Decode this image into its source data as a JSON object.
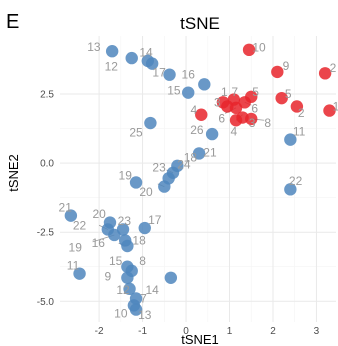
{
  "panel_label": "E",
  "colors": {
    "cluster_blue": "#4f86bd",
    "cluster_red": "#e8242c",
    "label": "#9a9a9a"
  },
  "chart_data": {
    "type": "scatter",
    "title": "tSNE",
    "xlabel": "tSNE1",
    "ylabel": "tSNE2",
    "xlim": [
      -2.9,
      3.45
    ],
    "ylim": [
      -5.75,
      4.6
    ],
    "xticks": [
      -2,
      -1,
      0,
      1,
      2,
      3
    ],
    "yticks": [
      -5.0,
      -2.5,
      0.0,
      2.5
    ],
    "ytick_labels": [
      "-5.0",
      "-2.5",
      "0.0",
      "2.5"
    ],
    "grid": true,
    "legend": "none",
    "series": [
      {
        "color": "#4f86bd",
        "points": [
          {
            "label": "13",
            "x": -1.7,
            "y": 4.05
          },
          {
            "label": "14",
            "x": -1.25,
            "y": 3.8
          },
          {
            "label": "12",
            "x": -0.88,
            "y": 3.7
          },
          {
            "label": "12",
            "x": -0.78,
            "y": 3.6
          },
          {
            "label": "17",
            "x": -0.38,
            "y": 3.2
          },
          {
            "label": "16",
            "x": 0.42,
            "y": 2.85
          },
          {
            "label": "15",
            "x": 0.05,
            "y": 2.55
          },
          {
            "label": "25",
            "x": -0.82,
            "y": 1.45
          },
          {
            "label": "26",
            "x": 0.6,
            "y": 1.05
          },
          {
            "label": "21",
            "x": 0.3,
            "y": 0.35
          },
          {
            "label": "23",
            "x": -0.2,
            "y": -0.1
          },
          {
            "label": "24",
            "x": -0.3,
            "y": -0.35
          },
          {
            "label": "18",
            "x": -0.4,
            "y": -0.55
          },
          {
            "label": "20",
            "x": -0.5,
            "y": -0.85
          },
          {
            "label": "19",
            "x": -1.15,
            "y": -0.7
          },
          {
            "label": "11",
            "x": 2.4,
            "y": 0.85
          },
          {
            "label": "22",
            "x": 2.4,
            "y": -0.95
          },
          {
            "label": "21",
            "x": -2.65,
            "y": -1.9
          },
          {
            "label": "20",
            "x": -1.75,
            "y": -2.15
          },
          {
            "label": "22",
            "x": -1.8,
            "y": -2.4
          },
          {
            "label": "23",
            "x": -1.45,
            "y": -2.4
          },
          {
            "label": "17",
            "x": -0.95,
            "y": -2.35
          },
          {
            "label": "19",
            "x": -1.65,
            "y": -2.6
          },
          {
            "label": "16",
            "x": -1.4,
            "y": -2.8
          },
          {
            "label": "18",
            "x": -1.35,
            "y": -3.0
          },
          {
            "label": "15",
            "x": -1.35,
            "y": -3.75
          },
          {
            "label": "8",
            "x": -1.25,
            "y": -3.9
          },
          {
            "label": "11",
            "x": -2.45,
            "y": -4.0
          },
          {
            "label": "9",
            "x": -1.35,
            "y": -4.15
          },
          {
            "label": "14",
            "x": -0.35,
            "y": -4.15
          },
          {
            "label": "12",
            "x": -1.3,
            "y": -4.55
          },
          {
            "label": "7",
            "x": -1.15,
            "y": -4.9
          },
          {
            "label": "10",
            "x": -1.2,
            "y": -5.15
          },
          {
            "label": "13",
            "x": -1.15,
            "y": -5.3
          }
        ]
      },
      {
        "color": "#e8242c",
        "points": [
          {
            "label": "10",
            "x": 1.45,
            "y": 4.1
          },
          {
            "label": "9",
            "x": 2.1,
            "y": 3.3
          },
          {
            "label": "2",
            "x": 3.2,
            "y": 3.25
          },
          {
            "label": "1",
            "x": 0.85,
            "y": 2.2
          },
          {
            "label": "7",
            "x": 1.1,
            "y": 2.3
          },
          {
            "label": "5",
            "x": 1.35,
            "y": 2.2
          },
          {
            "label": "5",
            "x": 2.2,
            "y": 2.35
          },
          {
            "label": "6",
            "x": 1.5,
            "y": 2.4
          },
          {
            "label": "3",
            "x": 0.95,
            "y": 2.05
          },
          {
            "label": "4",
            "x": 0.35,
            "y": 1.75
          },
          {
            "label": "6",
            "x": 1.15,
            "y": 2.0
          },
          {
            "label": "2",
            "x": 2.55,
            "y": 2.05
          },
          {
            "label": "1",
            "x": 3.3,
            "y": 1.9
          },
          {
            "label": "3",
            "x": 1.3,
            "y": 1.65
          },
          {
            "label": "4",
            "x": 1.15,
            "y": 1.55
          },
          {
            "label": "8",
            "x": 1.5,
            "y": 1.6
          }
        ]
      }
    ],
    "point_labels": [
      {
        "text": "13",
        "x": -2.12,
        "y": 4.2
      },
      {
        "text": "14",
        "x": -0.92,
        "y": 4.0
      },
      {
        "text": "12",
        "x": -1.72,
        "y": 3.5
      },
      {
        "text": "17",
        "x": -0.62,
        "y": 3.28
      },
      {
        "text": "16",
        "x": 0.05,
        "y": 3.2
      },
      {
        "text": "15",
        "x": -0.28,
        "y": 2.62
      },
      {
        "text": "10",
        "x": 1.68,
        "y": 4.18
      },
      {
        "text": "9",
        "x": 2.3,
        "y": 3.52
      },
      {
        "text": "2",
        "x": 3.38,
        "y": 3.45
      },
      {
        "text": "1",
        "x": 0.88,
        "y": 2.58
      },
      {
        "text": "7",
        "x": 1.12,
        "y": 2.58
      },
      {
        "text": "5",
        "x": 1.6,
        "y": 2.58
      },
      {
        "text": "5",
        "x": 2.35,
        "y": 2.5
      },
      {
        "text": "3",
        "x": 0.72,
        "y": 2.2
      },
      {
        "text": "6",
        "x": 1.58,
        "y": 1.98
      },
      {
        "text": "4",
        "x": 0.18,
        "y": 1.92
      },
      {
        "text": "6",
        "x": 0.82,
        "y": 1.62
      },
      {
        "text": "2",
        "x": 2.65,
        "y": 1.82
      },
      {
        "text": "1",
        "x": 3.45,
        "y": 2.05
      },
      {
        "text": "3",
        "x": 1.52,
        "y": 1.45
      },
      {
        "text": "8",
        "x": 1.88,
        "y": 1.45
      },
      {
        "text": "4",
        "x": 1.1,
        "y": 1.15
      },
      {
        "text": "25",
        "x": -1.15,
        "y": 1.1
      },
      {
        "text": "26",
        "x": 0.25,
        "y": 1.2
      },
      {
        "text": "11",
        "x": 2.6,
        "y": 1.15
      },
      {
        "text": "21",
        "x": 0.55,
        "y": 0.38
      },
      {
        "text": "23",
        "x": -0.62,
        "y": -0.15
      },
      {
        "text": "24",
        "x": -0.05,
        "y": -0.05
      },
      {
        "text": "18",
        "x": 0.1,
        "y": 0.2
      },
      {
        "text": "20",
        "x": -0.92,
        "y": -1.05
      },
      {
        "text": "19",
        "x": -1.4,
        "y": -0.45
      },
      {
        "text": "22",
        "x": 2.52,
        "y": -0.65
      },
      {
        "text": "21",
        "x": -2.78,
        "y": -1.6
      },
      {
        "text": "20",
        "x": -2.0,
        "y": -1.85
      },
      {
        "text": "22",
        "x": -2.45,
        "y": -2.25
      },
      {
        "text": "23",
        "x": -1.42,
        "y": -2.1
      },
      {
        "text": "17",
        "x": -0.72,
        "y": -2.05
      },
      {
        "text": "19",
        "x": -2.55,
        "y": -3.05
      },
      {
        "text": "16",
        "x": -2.02,
        "y": -2.9
      },
      {
        "text": "18",
        "x": -1.08,
        "y": -2.8
      },
      {
        "text": "11",
        "x": -2.6,
        "y": -3.7
      },
      {
        "text": "15",
        "x": -1.62,
        "y": -3.55
      },
      {
        "text": "8",
        "x": -1.0,
        "y": -3.55
      },
      {
        "text": "9",
        "x": -1.8,
        "y": -4.1
      },
      {
        "text": "14",
        "x": -0.78,
        "y": -4.6
      },
      {
        "text": "12",
        "x": -1.45,
        "y": -4.6
      },
      {
        "text": "7",
        "x": -0.98,
        "y": -4.9
      },
      {
        "text": "10",
        "x": -1.5,
        "y": -5.45
      },
      {
        "text": "13",
        "x": -0.95,
        "y": -5.5
      }
    ],
    "leader_lines": [
      {
        "x1": -1.55,
        "y1": -2.9,
        "x2": -1.35,
        "y2": -3.0
      },
      {
        "x1": -2.15,
        "y1": -2.85,
        "x2": -1.65,
        "y2": -2.6
      },
      {
        "x1": -2.0,
        "y1": -2.25,
        "x2": -1.8,
        "y2": -2.4
      },
      {
        "x1": -0.45,
        "y1": -0.25,
        "x2": -0.3,
        "y2": -0.35
      },
      {
        "x1": -0.65,
        "y1": -0.75,
        "x2": -0.5,
        "y2": -0.85
      },
      {
        "x1": 1.8,
        "y1": 1.55,
        "x2": 1.5,
        "y2": 1.6
      },
      {
        "x1": 1.3,
        "y1": 1.75,
        "x2": 1.15,
        "y2": 1.55
      },
      {
        "x1": 0.9,
        "y1": 1.8,
        "x2": 1.15,
        "y2": 2.0
      },
      {
        "x1": 1.5,
        "y1": 2.1,
        "x2": 1.35,
        "y2": 2.2
      }
    ]
  }
}
